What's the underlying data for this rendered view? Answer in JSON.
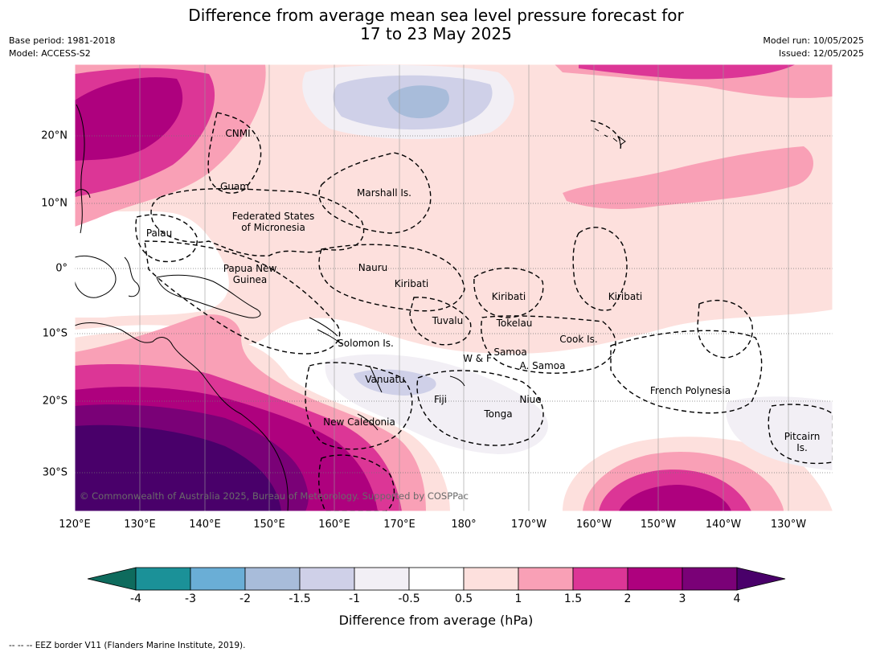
{
  "header": {
    "title_line1": "Difference from average mean sea level pressure forecast for",
    "title_line2": "17 to 23 May 2025",
    "base_period": "Base period: 1981-2018",
    "model": "Model: ACCESS-S2",
    "model_run": "Model run: 10/05/2025",
    "issued": "Issued: 12/05/2025"
  },
  "map": {
    "lon_labels": [
      "120°E",
      "130°E",
      "140°E",
      "150°E",
      "160°E",
      "170°E",
      "180°",
      "170°W",
      "160°W",
      "150°W",
      "140°W",
      "130°W"
    ],
    "lat_labels": [
      "20°N",
      "10°N",
      "0°",
      "10°S",
      "20°S",
      "30°S"
    ],
    "places": {
      "cnmi": "CNMI",
      "guam": "Guam",
      "marshall": "Marshall Is.",
      "fsm_1": "Federated States",
      "fsm_2": "of Micronesia",
      "palau": "Palau",
      "png_1": "Papua New",
      "png_2": "Guinea",
      "nauru": "Nauru",
      "kiribati_w": "Kiribati",
      "kiribati_c": "Kiribati",
      "kiribati_e": "Kiribati",
      "tuvalu": "Tuvalu",
      "tokelau": "Tokelau",
      "cook": "Cook Is.",
      "solomon": "Solomon Is.",
      "wallis": "W & F",
      "samoa": "Samoa",
      "amsamoa": "A. Samoa",
      "vanuatu": "Vanuatu",
      "fiji": "Fiji",
      "niue": "Niue",
      "tonga": "Tonga",
      "newcal": "New Caledonia",
      "frpoly": "French Polynesia",
      "pitcairn_1": "Pitcairn",
      "pitcairn_2": "Is."
    },
    "credit": "© Commonwealth of Australia 2025, Bureau of Meteorology. Supported by COSPPac"
  },
  "colorbar": {
    "ticks": [
      "-4",
      "-3",
      "-2",
      "-1.5",
      "-1",
      "-0.5",
      "0.5",
      "1",
      "1.5",
      "2",
      "3",
      "4"
    ],
    "colors": [
      "#0e6b5d",
      "#1b9198",
      "#6aaed6",
      "#a8bcda",
      "#cfd0e8",
      "#f2eff5",
      "#ffffff",
      "#fde0dd",
      "#f9a0b6",
      "#dc3696",
      "#ae017e",
      "#7a0177",
      "#49006a"
    ],
    "label": "Difference from average (hPa)"
  },
  "footer": "--  --  -- EEZ border V11 (Flanders Marine Institute, 2019)."
}
